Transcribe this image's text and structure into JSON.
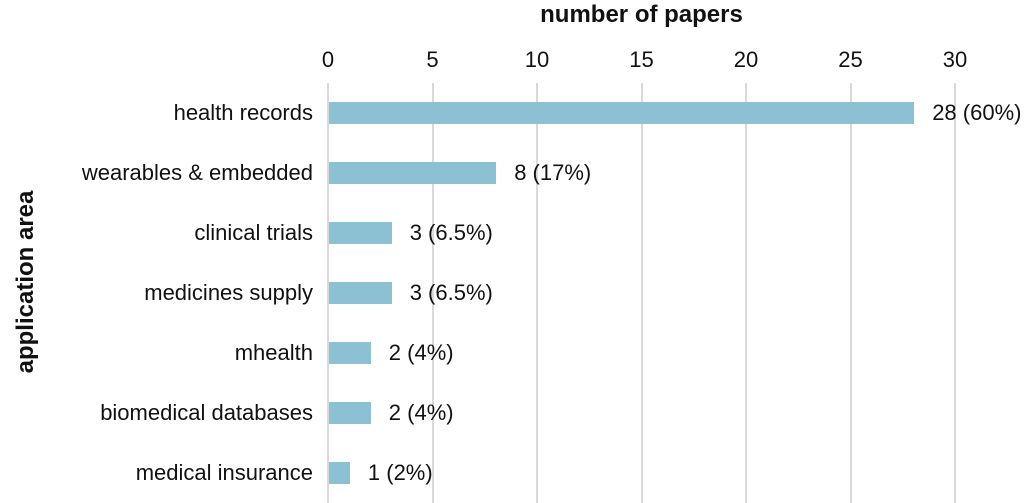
{
  "chart_data": {
    "type": "bar",
    "orientation": "horizontal",
    "title": "number of papers",
    "xlabel": "number of papers",
    "ylabel": "application area",
    "categories": [
      "health records",
      "wearables & embedded",
      "clinical trials",
      "medicines supply",
      "mhealth",
      "biomedical databases",
      "medical insurance"
    ],
    "values": [
      28,
      8,
      3,
      3,
      2,
      2,
      1
    ],
    "value_labels": [
      "28 (60%)",
      "8 (17%)",
      "3 (6.5%)",
      "3 (6.5%)",
      "2 (4%)",
      "2 (4%)",
      "1 (2%)"
    ],
    "x_ticks": [
      "0",
      "5",
      "10",
      "15",
      "20",
      "25",
      "30"
    ],
    "xlim": [
      0,
      30
    ],
    "grid": true,
    "legend": false,
    "axis_position": "top",
    "colors": {
      "bar": "#8bc1d3",
      "gridline": "#d9d9d9",
      "text": "#111111"
    }
  }
}
